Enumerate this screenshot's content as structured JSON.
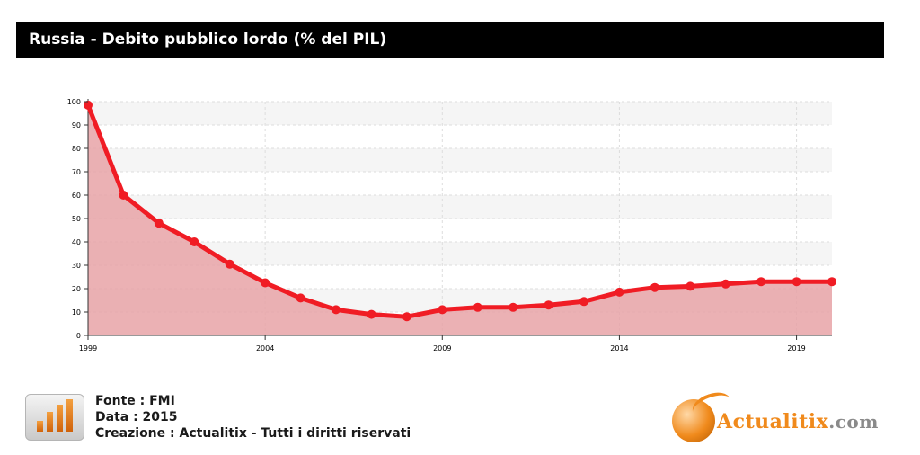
{
  "header": {
    "title": "Russia - Debito pubblico lordo (% del PIL)"
  },
  "chart_data": {
    "type": "area",
    "title": "Russia - Debito pubblico lordo (% del PIL)",
    "xlabel": "",
    "ylabel": "",
    "x": [
      1999,
      2000,
      2001,
      2002,
      2003,
      2004,
      2005,
      2006,
      2007,
      2008,
      2009,
      2010,
      2011,
      2012,
      2013,
      2014,
      2015,
      2016,
      2017,
      2018,
      2019,
      2020
    ],
    "values": [
      98.5,
      60,
      48,
      40,
      30.5,
      22.5,
      16,
      11,
      9,
      8,
      11,
      12,
      12,
      13,
      14.5,
      18.5,
      20.5,
      21,
      22,
      23,
      23,
      23
    ],
    "xlim": [
      1999,
      2020
    ],
    "ylim": [
      0,
      100
    ],
    "yticks": [
      0,
      10,
      20,
      30,
      40,
      50,
      60,
      70,
      80,
      90,
      100
    ],
    "xticks": [
      1999,
      2004,
      2009,
      2014,
      2019
    ],
    "grid": true,
    "colors": {
      "line": "#f01c24",
      "fill": "#e8a3a7",
      "band": "#f5f5f5"
    }
  },
  "footer": {
    "source": "Fonte : FMI",
    "date": "Data : 2015",
    "credit": "Creazione : Actualitix - Tutti i diritti riservati"
  },
  "logo": {
    "name": "Actualitix",
    "suffix": ".com"
  }
}
